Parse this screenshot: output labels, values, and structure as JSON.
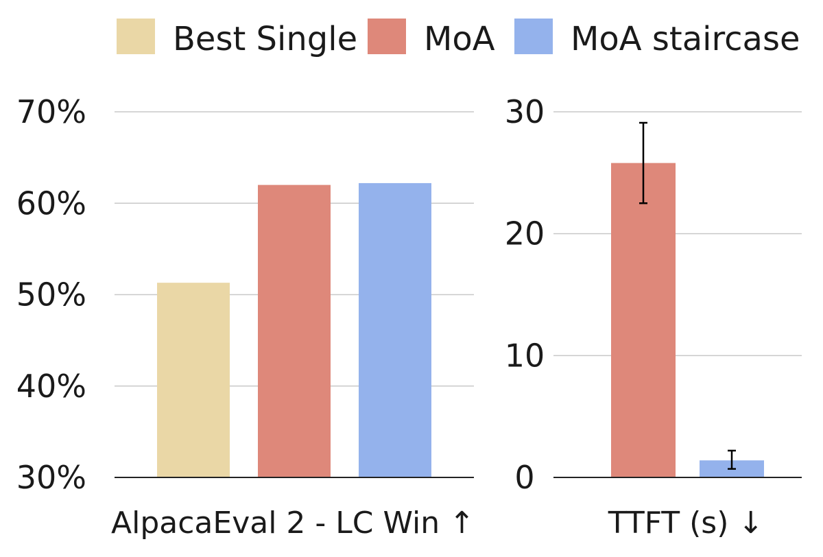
{
  "legend": [
    {
      "label": "Best Single",
      "color": "#EAD7A6"
    },
    {
      "label": "MoA",
      "color": "#DE887A"
    },
    {
      "label": "MoA staircase",
      "color": "#94B2EC"
    }
  ],
  "chart_data": [
    {
      "type": "bar",
      "title": "",
      "xlabel": "AlpacaEval 2 - LC Win ↑",
      "ylabel": "",
      "categories": [
        "Best Single",
        "MoA",
        "MoA staircase"
      ],
      "values": [
        51.3,
        62.0,
        62.2
      ],
      "colors": [
        "#EAD7A6",
        "#DE887A",
        "#94B2EC"
      ],
      "ylim": [
        30,
        70
      ],
      "yticks": [
        30,
        40,
        50,
        60,
        70
      ],
      "ytick_labels": [
        "30%",
        "40%",
        "50%",
        "60%",
        "70%"
      ],
      "grid": true
    },
    {
      "type": "bar",
      "title": "",
      "xlabel": "TTFT (s) ↓",
      "ylabel": "",
      "categories": [
        "MoA",
        "MoA staircase"
      ],
      "values": [
        25.8,
        1.4
      ],
      "errors_low": [
        22.5,
        0.7
      ],
      "errors_high": [
        29.1,
        2.2
      ],
      "colors": [
        "#DE887A",
        "#94B2EC"
      ],
      "ylim": [
        0,
        30
      ],
      "yticks": [
        0,
        10,
        20,
        30
      ],
      "ytick_labels": [
        "0",
        "10",
        "20",
        "30"
      ],
      "grid": true
    }
  ]
}
